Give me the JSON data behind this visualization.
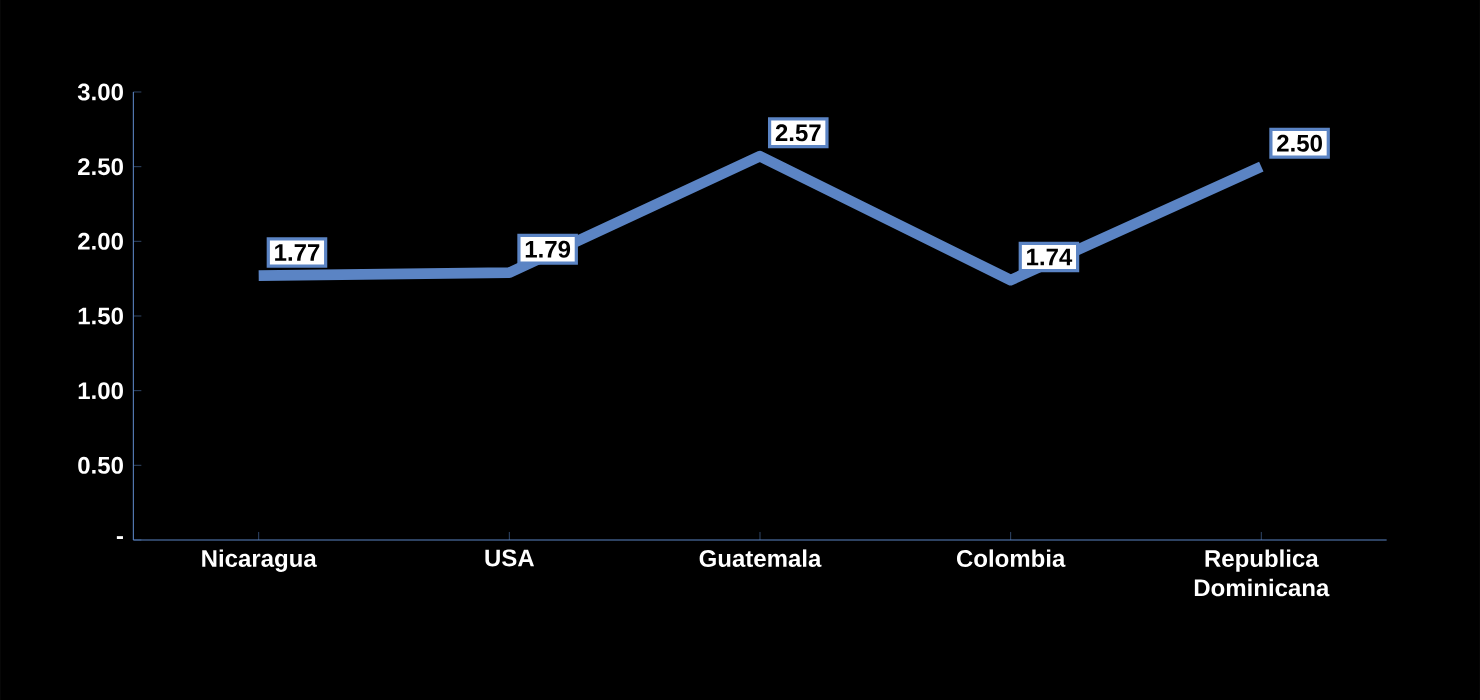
{
  "chart_data": {
    "type": "line",
    "categories": [
      "Nicaragua",
      "USA",
      "Guatemala",
      "Colombia",
      "Republica Dominicana"
    ],
    "values": [
      1.77,
      1.79,
      2.57,
      1.74,
      2.5
    ],
    "value_labels": [
      "1.77",
      "1.79",
      "2.57",
      "1.74",
      "2.50"
    ],
    "color": "#5b84c4",
    "marker": "none",
    "ylim": [
      0,
      3
    ],
    "yticks": [
      {
        "value": 0,
        "label": "-"
      },
      {
        "value": 0.5,
        "label": "0.50"
      },
      {
        "value": 1,
        "label": "1.00"
      },
      {
        "value": 1.5,
        "label": "1.50"
      },
      {
        "value": 2,
        "label": "2.00"
      },
      {
        "value": 2.5,
        "label": "2.50"
      },
      {
        "value": 3,
        "label": "3.00"
      }
    ]
  }
}
